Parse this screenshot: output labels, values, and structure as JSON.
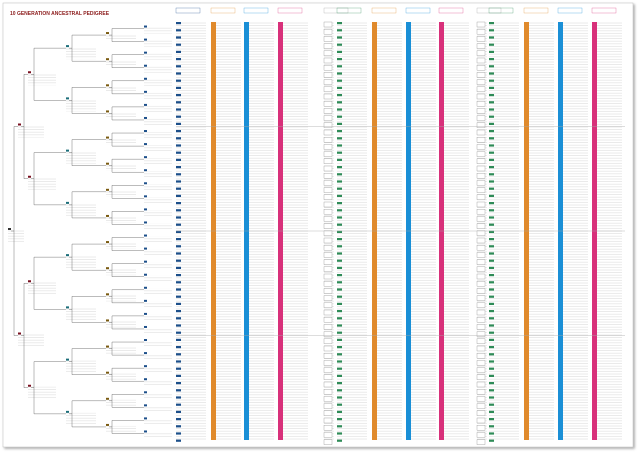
{
  "header": {
    "title": "10 GENERATION ANCESTRAL PEDIGREE"
  }
}
